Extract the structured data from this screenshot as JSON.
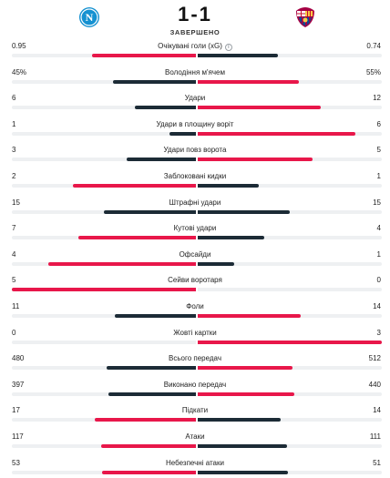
{
  "match": {
    "home_team_logo_icon": "napoli-crest-icon",
    "away_team_logo_icon": "barcelona-crest-icon",
    "score": "1-1",
    "status": "ЗАВЕРШЕНО"
  },
  "colors": {
    "winner": "#e8174a",
    "loser": "#1c2b36",
    "track": "#eef0f2"
  },
  "stats": [
    {
      "label": "Очікувані голи (xG)",
      "home": "0.95",
      "away": "0.74",
      "info": true
    },
    {
      "label": "Володіння м'ячем",
      "home": "45%",
      "away": "55%"
    },
    {
      "label": "Удари",
      "home": "6",
      "away": "12"
    },
    {
      "label": "Удари в площину воріт",
      "home": "1",
      "away": "6"
    },
    {
      "label": "Удари повз ворота",
      "home": "3",
      "away": "5"
    },
    {
      "label": "Заблоковані кидки",
      "home": "2",
      "away": "1"
    },
    {
      "label": "Штрафні удари",
      "home": "15",
      "away": "15"
    },
    {
      "label": "Кутові удари",
      "home": "7",
      "away": "4"
    },
    {
      "label": "Офсайди",
      "home": "4",
      "away": "1"
    },
    {
      "label": "Сейви воротаря",
      "home": "5",
      "away": "0"
    },
    {
      "label": "Фоли",
      "home": "11",
      "away": "14"
    },
    {
      "label": "Жовті картки",
      "home": "0",
      "away": "3"
    },
    {
      "label": "Всього передач",
      "home": "480",
      "away": "512"
    },
    {
      "label": "Виконано передач",
      "home": "397",
      "away": "440"
    },
    {
      "label": "Підкати",
      "home": "17",
      "away": "14"
    },
    {
      "label": "Атаки",
      "home": "117",
      "away": "111"
    },
    {
      "label": "Небезпечні атаки",
      "home": "53",
      "away": "51"
    }
  ]
}
